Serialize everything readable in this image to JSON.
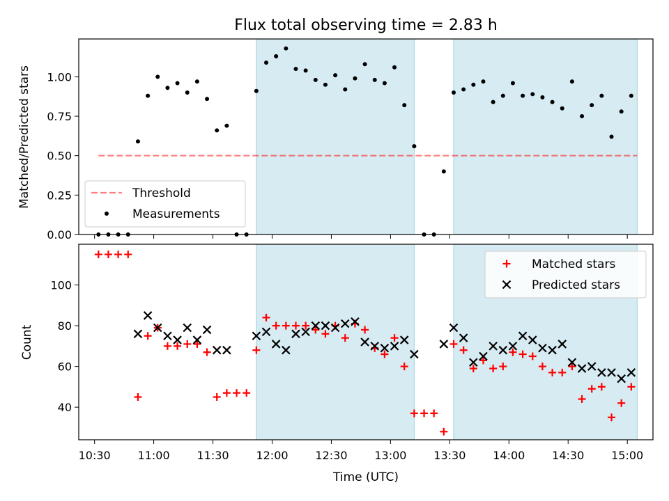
{
  "title": "Flux total observing time = 2.83 h",
  "chart_data": [
    {
      "type": "scatter",
      "ylabel": "Matched/Predicted stars",
      "ylim": [
        0,
        1.24
      ],
      "yticks": [
        0.0,
        0.25,
        0.5,
        0.75,
        1.0
      ],
      "ytick_labels": [
        "0.00",
        "0.25",
        "0.50",
        "0.75",
        "1.00"
      ],
      "grid": false,
      "legend_position": "bottom-left",
      "threshold": {
        "name": "Threshold",
        "value": 0.5,
        "x_range": [
          "10:32",
          "15:05"
        ]
      },
      "shaded_intervals": [
        [
          "11:52",
          "13:12"
        ],
        [
          "13:32",
          "15:05"
        ]
      ],
      "series": [
        {
          "name": "Measurements",
          "x": [
            "10:32",
            "10:37",
            "10:42",
            "10:47",
            "10:52",
            "10:57",
            "11:02",
            "11:07",
            "11:12",
            "11:17",
            "11:22",
            "11:27",
            "11:32",
            "11:37",
            "11:42",
            "11:47",
            "11:52",
            "11:57",
            "12:02",
            "12:07",
            "12:12",
            "12:17",
            "12:22",
            "12:27",
            "12:32",
            "12:37",
            "12:42",
            "12:47",
            "12:52",
            "12:57",
            "13:02",
            "13:07",
            "13:12",
            "13:17",
            "13:22",
            "13:27",
            "13:32",
            "13:37",
            "13:42",
            "13:47",
            "13:52",
            "13:57",
            "14:02",
            "14:07",
            "14:12",
            "14:17",
            "14:22",
            "14:27",
            "14:32",
            "14:37",
            "14:42",
            "14:47",
            "14:52",
            "14:57",
            "15:02"
          ],
          "y": [
            0.0,
            0.0,
            0.0,
            0.0,
            0.59,
            0.88,
            1.0,
            0.93,
            0.96,
            0.9,
            0.97,
            0.86,
            0.66,
            0.69,
            0.0,
            0.0,
            0.91,
            1.09,
            1.13,
            1.18,
            1.05,
            1.04,
            0.98,
            0.95,
            1.01,
            0.92,
            0.99,
            1.08,
            0.98,
            0.96,
            1.06,
            0.82,
            0.56,
            0.0,
            0.0,
            0.4,
            0.9,
            0.92,
            0.95,
            0.97,
            0.84,
            0.88,
            0.96,
            0.88,
            0.89,
            0.87,
            0.84,
            0.8,
            0.97,
            0.75,
            0.82,
            0.88,
            0.62,
            0.78,
            0.88
          ]
        }
      ]
    },
    {
      "type": "scatter",
      "xlabel": "Time (UTC)",
      "ylabel": "Count",
      "ylim": [
        24,
        120
      ],
      "yticks": [
        40,
        60,
        80,
        100
      ],
      "ytick_labels": [
        "40",
        "60",
        "80",
        "100"
      ],
      "xticks": [
        "10:30",
        "11:00",
        "11:30",
        "12:00",
        "12:30",
        "13:00",
        "13:30",
        "14:00",
        "14:30",
        "15:00"
      ],
      "grid": false,
      "legend_position": "top-right",
      "shaded_intervals": [
        [
          "11:52",
          "13:12"
        ],
        [
          "13:32",
          "15:05"
        ]
      ],
      "series": [
        {
          "name": "Matched stars",
          "x": [
            "10:32",
            "10:37",
            "10:42",
            "10:47",
            "10:52",
            "10:57",
            "11:02",
            "11:07",
            "11:12",
            "11:17",
            "11:22",
            "11:27",
            "11:32",
            "11:37",
            "11:42",
            "11:47",
            "11:52",
            "11:57",
            "12:02",
            "12:07",
            "12:12",
            "12:17",
            "12:22",
            "12:27",
            "12:32",
            "12:37",
            "12:42",
            "12:47",
            "12:52",
            "12:57",
            "13:02",
            "13:07",
            "13:12",
            "13:17",
            "13:22",
            "13:27",
            "13:32",
            "13:37",
            "13:42",
            "13:47",
            "13:52",
            "13:57",
            "14:02",
            "14:07",
            "14:12",
            "14:17",
            "14:22",
            "14:27",
            "14:32",
            "14:37",
            "14:42",
            "14:47",
            "14:52",
            "14:57",
            "15:02"
          ],
          "y": [
            115,
            115,
            115,
            115,
            45,
            75,
            79,
            70,
            70,
            71,
            71,
            67,
            45,
            47,
            47,
            47,
            68,
            84,
            80,
            80,
            80,
            80,
            78,
            76,
            80,
            74,
            81,
            78,
            69,
            66,
            74,
            60,
            37,
            37,
            37,
            28,
            71,
            68,
            59,
            63,
            59,
            60,
            67,
            66,
            65,
            60,
            57,
            57,
            60,
            44,
            49,
            50,
            35,
            42,
            50
          ]
        },
        {
          "name": "Predicted stars",
          "x": [
            "10:52",
            "10:57",
            "11:02",
            "11:07",
            "11:12",
            "11:17",
            "11:22",
            "11:27",
            "11:32",
            "11:37",
            "11:52",
            "11:57",
            "12:02",
            "12:07",
            "12:12",
            "12:17",
            "12:22",
            "12:27",
            "12:32",
            "12:37",
            "12:42",
            "12:47",
            "12:52",
            "12:57",
            "13:02",
            "13:07",
            "13:12",
            "13:27",
            "13:32",
            "13:37",
            "13:42",
            "13:47",
            "13:52",
            "13:57",
            "14:02",
            "14:07",
            "14:12",
            "14:17",
            "14:22",
            "14:27",
            "14:32",
            "14:37",
            "14:42",
            "14:47",
            "14:52",
            "14:57",
            "15:02"
          ],
          "y": [
            76,
            85,
            79,
            75,
            73,
            79,
            73,
            78,
            68,
            68,
            75,
            77,
            71,
            68,
            76,
            77,
            80,
            80,
            79,
            81,
            82,
            72,
            70,
            69,
            70,
            73,
            66,
            71,
            79,
            74,
            62,
            65,
            70,
            68,
            70,
            75,
            73,
            69,
            68,
            71,
            62,
            59,
            60,
            57,
            57,
            54,
            57
          ]
        }
      ]
    }
  ]
}
